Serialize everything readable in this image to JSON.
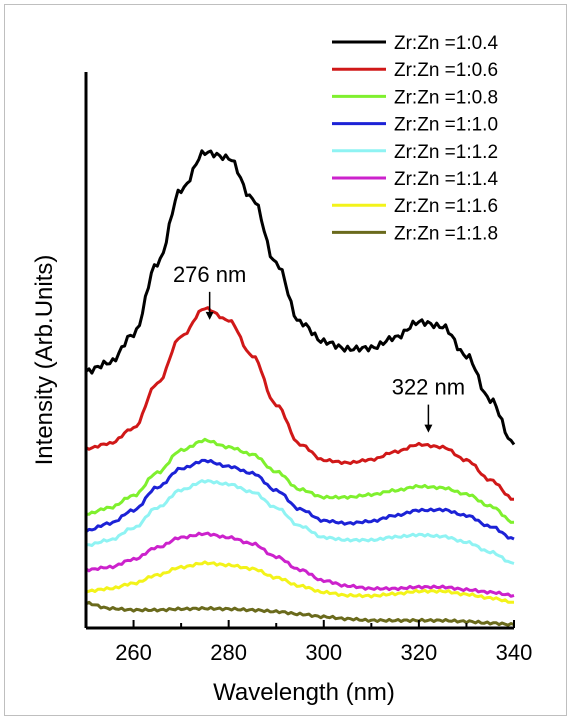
{
  "chart_data": {
    "type": "line",
    "xlabel": "Wavelength (nm)",
    "ylabel": "Intensity (Arb.Units)",
    "xlim": [
      250,
      340
    ],
    "ylim": [
      0,
      100
    ],
    "xticks": [
      260,
      280,
      300,
      320,
      340
    ],
    "legend_position": "top-right",
    "annotations": [
      {
        "text": "276 nm",
        "x": 276,
        "y": 55.2
      },
      {
        "text": "322 nm",
        "x": 322,
        "y": 33.6
      }
    ],
    "x": [
      250,
      255,
      260,
      265,
      270,
      275,
      280,
      285,
      290,
      295,
      300,
      305,
      310,
      315,
      320,
      325,
      330,
      335,
      340
    ],
    "series": [
      {
        "name": "Zr:Zn =1:0.4",
        "color": "#000000",
        "values": [
          45.7,
          47.4,
          52.8,
          66.4,
          80.5,
          87.7,
          86.6,
          78.8,
          66.4,
          55.1,
          51.4,
          50.0,
          50.2,
          52.2,
          55.2,
          54.3,
          48.7,
          40.3,
          31.7
        ]
      },
      {
        "name": "Zr:Zn =1:0.6",
        "color": "#d01818",
        "values": [
          30.9,
          31.9,
          34.8,
          43.4,
          52.4,
          57.8,
          55.5,
          48.7,
          39.3,
          31.7,
          28.7,
          28.2,
          28.8,
          30.3,
          31.7,
          31.2,
          28.7,
          24.9,
          21.2
        ]
      },
      {
        "name": "Zr:Zn =1:0.8",
        "color": "#7ff02e",
        "values": [
          18.4,
          19.6,
          21.9,
          26.3,
          30.6,
          32.5,
          31.2,
          29.8,
          26.5,
          23.1,
          21.6,
          21.6,
          22.1,
          22.9,
          23.7,
          23.4,
          22.2,
          19.9,
          16.8
        ]
      },
      {
        "name": "Zr:Zn =1:1.0",
        "color": "#1c22d6",
        "values": [
          15.2,
          16.6,
          19.1,
          23.5,
          27.1,
          28.6,
          27.5,
          26.2,
          22.9,
          19.3,
          17.1,
          16.6,
          17.0,
          18.1,
          19.1,
          19.2,
          18.1,
          16.0,
          13.6
        ]
      },
      {
        "name": "Zr:Zn =1:1.2",
        "color": "#8ff3f3",
        "values": [
          12.4,
          13.4,
          15.7,
          19.6,
          23.0,
          24.7,
          24.1,
          22.6,
          19.6,
          16.1,
          13.9,
          13.4,
          13.4,
          14.0,
          14.4,
          14.1,
          13.0,
          11.1,
          8.9
        ]
      },
      {
        "name": "Zr:Zn =1:1.4",
        "color": "#cc22cc",
        "values": [
          7.7,
          8.2,
          9.7,
          12.0,
          13.9,
          14.6,
          13.9,
          12.7,
          10.2,
          7.7,
          5.6,
          4.6,
          4.1,
          4.1,
          4.4,
          4.4,
          3.9,
          3.4,
          2.8
        ]
      },
      {
        "name": "Zr:Zn =1:1.6",
        "color": "#f3f31a",
        "values": [
          3.6,
          4.1,
          5.1,
          6.7,
          8.2,
          9.0,
          8.6,
          7.9,
          6.2,
          4.6,
          3.4,
          2.8,
          2.7,
          3.1,
          3.6,
          3.6,
          3.0,
          2.3,
          1.5
        ]
      },
      {
        "name": "Zr:Zn =1:1.8",
        "color": "#6a6a1c",
        "values": [
          1.3,
          0.3,
          0.0,
          0.0,
          0.2,
          0.3,
          0.2,
          0.0,
          -0.3,
          -0.8,
          -1.3,
          -1.7,
          -2.0,
          -2.0,
          -2.0,
          -2.0,
          -2.2,
          -2.5,
          -2.8
        ]
      }
    ]
  }
}
